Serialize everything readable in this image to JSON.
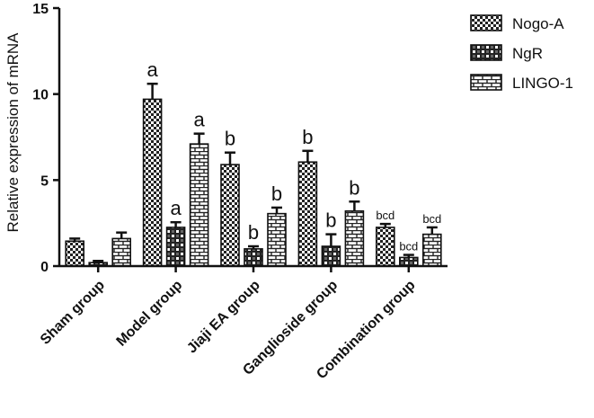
{
  "chart_data": {
    "type": "bar",
    "title": "",
    "xlabel": "",
    "ylabel": "Relative expression of mRNA",
    "ylim": [
      0,
      15
    ],
    "yticks": [
      0,
      5,
      10,
      15
    ],
    "grid": false,
    "legend_position": "top-right",
    "categories": [
      "Sham group",
      "Model group",
      "Jiaji EA group",
      "Ganglioside group",
      "Combination group"
    ],
    "series": [
      {
        "name": "Nogo-A",
        "pattern": "checker",
        "values": [
          1.45,
          9.7,
          5.9,
          6.05,
          2.25
        ],
        "errors": [
          0.15,
          0.9,
          0.7,
          0.65,
          0.2
        ],
        "labels": [
          "",
          "a",
          "b",
          "b",
          "bcd"
        ]
      },
      {
        "name": "NgR",
        "pattern": "dots",
        "values": [
          0.2,
          2.25,
          1.0,
          1.15,
          0.5
        ],
        "errors": [
          0.1,
          0.3,
          0.15,
          0.7,
          0.15
        ],
        "labels": [
          "",
          "a",
          "b",
          "b",
          "bcd"
        ]
      },
      {
        "name": "LINGO-1",
        "pattern": "brick",
        "values": [
          1.6,
          7.1,
          3.05,
          3.2,
          1.85
        ],
        "errors": [
          0.35,
          0.6,
          0.35,
          0.55,
          0.4
        ],
        "labels": [
          "",
          "a",
          "b",
          "b",
          "bcd"
        ]
      }
    ]
  }
}
